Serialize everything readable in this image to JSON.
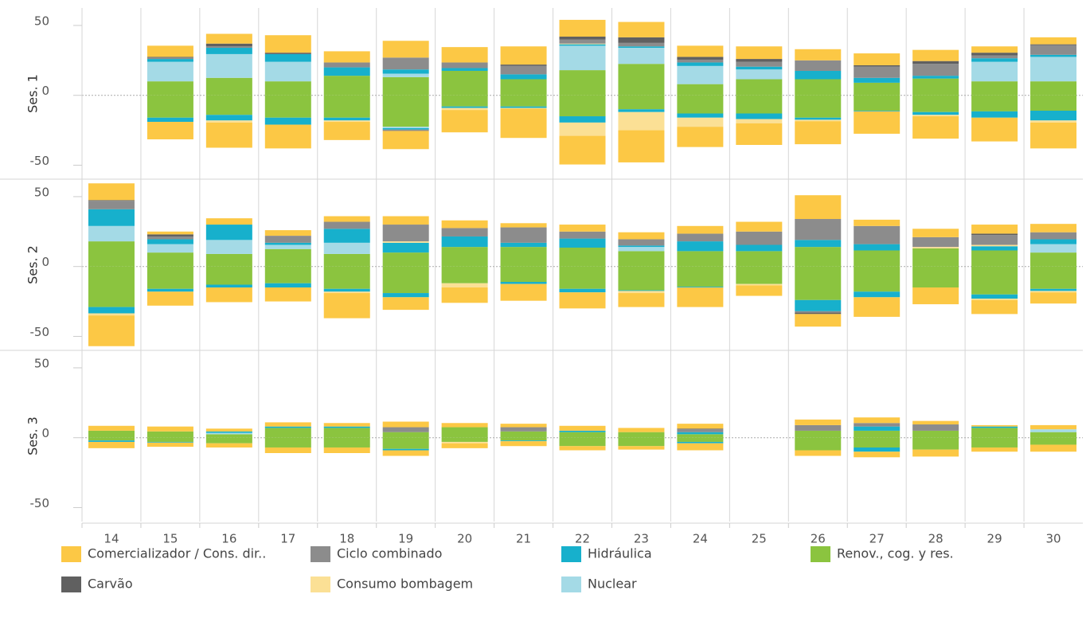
{
  "chart_data": {
    "type": "bar",
    "categories": [
      "14",
      "15",
      "16",
      "17",
      "18",
      "19",
      "20",
      "21",
      "22",
      "23",
      "24",
      "25",
      "26",
      "27",
      "28",
      "29",
      "30"
    ],
    "ylim": [
      -60,
      62.5
    ],
    "yticks": [
      -50,
      0,
      50
    ],
    "legend": [
      {
        "name": "Comercializador / Cons. dir..",
        "color": "#fcc845"
      },
      {
        "name": "Ciclo combinado",
        "color": "#8c8c8c"
      },
      {
        "name": "Hidráulica",
        "color": "#17b0cc"
      },
      {
        "name": "Renov., cog. y res.",
        "color": "#8bc43f"
      },
      {
        "name": "Carvão",
        "color": "#606060"
      },
      {
        "name": "Consumo bombagem",
        "color": "#fbe095"
      },
      {
        "name": "Nuclear",
        "color": "#a4dae6"
      }
    ],
    "panels": [
      {
        "label": "Ses. 1",
        "series": [
          {
            "positive": [
              0,
              8,
              7,
              12.5,
              8,
              12,
              11,
              13,
              12,
              11,
              8,
              9,
              8,
              8.5,
              8,
              4.5,
              5
            ],
            "negative": [
              0,
              -12.5,
              -18,
              -17,
              -13,
              -13,
              -16,
              -21,
              -20.5,
              -23,
              -14.5,
              -15.5,
              -16.5,
              -16,
              -16,
              -17,
              -18.5
            ]
          },
          {
            "positive": [
              0,
              1,
              1,
              0,
              3.5,
              8.5,
              4,
              6,
              3,
              2.5,
              2,
              3.5,
              7.5,
              8,
              8.5,
              2,
              7
            ],
            "negative": [
              0,
              0,
              0,
              0,
              0,
              -1,
              0,
              0,
              0,
              0,
              0,
              0,
              0,
              0,
              0,
              0,
              0
            ]
          },
          {
            "positive": [
              0,
              2,
              4.5,
              5.5,
              6,
              3,
              2,
              3.5,
              1,
              1,
              2.5,
              2,
              6,
              3.5,
              2,
              2.5,
              1.5
            ],
            "negative": [
              0,
              -3,
              -4,
              -5,
              -2,
              -1,
              -1,
              -1,
              -4.5,
              -2,
              -3,
              -4,
              -1.5,
              -0.5,
              -2,
              -4.5,
              -7
            ]
          },
          {
            "positive": [
              0,
              10,
              12.5,
              10,
              14,
              13,
              17.5,
              11.5,
              18,
              22.5,
              8,
              11.5,
              11.5,
              9,
              12,
              10,
              10
            ],
            "negative": [
              0,
              -16,
              -14,
              -16,
              -16,
              -22.5,
              -8,
              -8,
              -15,
              -10,
              -13,
              -13,
              -16,
              -11,
              -12,
              -11.5,
              -11
            ]
          },
          {
            "positive": [
              0,
              0.5,
              2,
              1,
              0,
              0,
              0,
              1,
              2,
              4,
              2,
              2,
              0,
              1,
              2,
              2,
              0.5
            ],
            "negative": [
              0,
              0,
              0,
              0,
              0,
              0,
              0,
              0,
              0,
              0,
              0,
              0,
              0,
              0,
              0,
              0,
              0
            ]
          },
          {
            "positive": [
              0,
              0,
              0,
              0,
              0,
              0,
              0,
              0,
              0.5,
              0,
              0,
              0,
              0,
              0,
              0,
              0,
              0
            ],
            "negative": [
              0,
              0,
              -1.5,
              0,
              -1,
              0,
              -1.5,
              -0.5,
              -9.5,
              -13,
              -6.5,
              -3,
              -1,
              0,
              -1,
              0,
              -1.5
            ]
          },
          {
            "positive": [
              0,
              14,
              17,
              14,
              0,
              2.5,
              0,
              0,
              17.5,
              11.5,
              13,
              7,
              0,
              0,
              0,
              14,
              17.5
            ],
            "negative": [
              0,
              0,
              0,
              0,
              0,
              -1,
              0,
              0,
              0,
              0,
              0,
              0,
              0,
              0,
              0,
              0,
              0
            ]
          }
        ]
      },
      {
        "label": "Ses. 2",
        "series": [
          {
            "positive": [
              12,
              2,
              4.5,
              4,
              4,
              6,
              5.5,
              3,
              5,
              5,
              5.5,
              7,
              17,
              4.5,
              6,
              6.5,
              6
            ],
            "negative": [
              -22,
              -10,
              -10.5,
              -10,
              -18,
              -9,
              -11,
              -12,
              -11.5,
              -10,
              -14,
              -7.5,
              -9,
              -14,
              -12,
              -10,
              -8
            ]
          },
          {
            "positive": [
              6,
              2,
              0,
              5,
              5,
              12,
              6,
              11,
              5,
              4.5,
              5.5,
              9.5,
              15,
              13,
              7,
              7,
              5
            ],
            "negative": [
              0,
              0,
              0,
              0,
              0,
              0,
              0,
              0,
              0,
              0,
              0,
              0,
              -1,
              0,
              0,
              0,
              0
            ]
          },
          {
            "positive": [
              12,
              3.5,
              11,
              1.5,
              10,
              7,
              7.5,
              3,
              6.5,
              1,
              7,
              4.5,
              5,
              4.5,
              0,
              3,
              3.5
            ],
            "negative": [
              -4.5,
              -2,
              -2,
              -3,
              -2,
              -3,
              0,
              -1.5,
              -2.5,
              -0.5,
              -0.5,
              0,
              -8,
              -4,
              0,
              -3,
              -1.5
            ]
          },
          {
            "positive": [
              18,
              10,
              9,
              12.5,
              9,
              10,
              14,
              14,
              13.5,
              11,
              11,
              11,
              14,
              11.5,
              13,
              11.5,
              10
            ],
            "negative": [
              -29,
              -16,
              -13,
              -12,
              -16,
              -19,
              -12,
              -11,
              -16,
              -17,
              -14.5,
              -12.5,
              -24,
              -18,
              -15,
              -20,
              -16
            ]
          },
          {
            "positive": [
              0.5,
              1.5,
              0,
              0,
              0,
              0,
              0,
              0,
              0,
              0,
              0,
              0,
              0,
              0,
              0,
              1,
              0
            ],
            "negative": [
              0,
              0,
              0,
              0,
              0,
              0,
              0,
              0,
              0,
              0,
              0,
              0,
              -1,
              0,
              0,
              0,
              0
            ]
          },
          {
            "positive": [
              0,
              0,
              0,
              0,
              0,
              1,
              0,
              0,
              0,
              0,
              0,
              0,
              0,
              0,
              1,
              1,
              0
            ],
            "negative": [
              -1.5,
              0,
              0,
              0,
              -1,
              0,
              -3,
              0,
              0,
              -1.5,
              0,
              -1,
              0,
              0,
              0,
              -1,
              -1
            ]
          },
          {
            "positive": [
              11,
              6,
              10,
              3,
              8,
              0,
              0,
              0,
              0,
              3,
              0,
              0,
              0,
              0,
              0,
              0,
              6
            ],
            "negative": [
              0,
              0,
              0,
              0,
              0,
              0,
              0,
              0,
              0,
              0,
              0,
              0,
              0,
              0,
              0,
              0,
              0
            ]
          }
        ]
      },
      {
        "label": "Ses. 3",
        "series": [
          {
            "positive": [
              3.5,
              3.5,
              2,
              3,
              2.5,
              4,
              3,
              2.5,
              3.5,
              3,
              3.5,
              0,
              4,
              4,
              2.5,
              1,
              3
            ],
            "negative": [
              -4.5,
              -3,
              -3,
              -4,
              -4,
              -4,
              -3.5,
              -3.5,
              -3,
              -2.5,
              -5,
              0,
              -4,
              -4,
              -5,
              -3,
              -5
            ]
          },
          {
            "positive": [
              0,
              0,
              0,
              0,
              0,
              3.5,
              0,
              3,
              0,
              0,
              2,
              0,
              4,
              2.5,
              4.5,
              0,
              0
            ],
            "negative": [
              0,
              0,
              0,
              0,
              0,
              0,
              0,
              0,
              0,
              0,
              0,
              0,
              0,
              0,
              0,
              0,
              0
            ]
          },
          {
            "positive": [
              0,
              0,
              1,
              1,
              1,
              0,
              0,
              0,
              1,
              0,
              1.5,
              0,
              0,
              3,
              0,
              1,
              0
            ],
            "negative": [
              -1,
              -0.5,
              0,
              0,
              0,
              -1,
              0,
              -0.5,
              0,
              0,
              -1,
              0,
              0,
              -3,
              0,
              0,
              0
            ]
          },
          {
            "positive": [
              5,
              4.5,
              2.5,
              7,
              7,
              4,
              7.5,
              4.5,
              4,
              4,
              2.5,
              0,
              5,
              5,
              5,
              7,
              4
            ],
            "negative": [
              -2,
              -3,
              -4,
              -7,
              -7,
              -8,
              -3,
              -2,
              -6,
              -6,
              -3,
              0,
              -9,
              -7,
              -8.5,
              -7,
              -5
            ]
          },
          {
            "positive": [
              0,
              0,
              0,
              0,
              0,
              0,
              0,
              0,
              0,
              0,
              0.5,
              0,
              0,
              0,
              0,
              0,
              0
            ],
            "negative": [
              0,
              0,
              0,
              0,
              0,
              0,
              0,
              0,
              0,
              0,
              0,
              0,
              0,
              0,
              0,
              0,
              0
            ]
          },
          {
            "positive": [
              0,
              0,
              0,
              0,
              0,
              0,
              0,
              0,
              0,
              0,
              0,
              0,
              0,
              0,
              0,
              0,
              0
            ],
            "negative": [
              0,
              0,
              0,
              0,
              0,
              0,
              -1,
              0,
              0,
              0,
              0,
              0,
              0,
              0,
              0,
              0,
              0
            ]
          },
          {
            "positive": [
              0,
              0,
              1,
              0,
              0,
              0,
              0,
              0,
              0,
              0,
              0,
              0,
              0,
              0,
              0,
              0,
              2
            ],
            "negative": [
              0,
              0,
              0,
              0,
              0,
              0,
              0,
              0,
              0,
              0,
              0,
              0,
              0,
              0,
              0,
              0,
              0
            ]
          }
        ]
      }
    ]
  }
}
